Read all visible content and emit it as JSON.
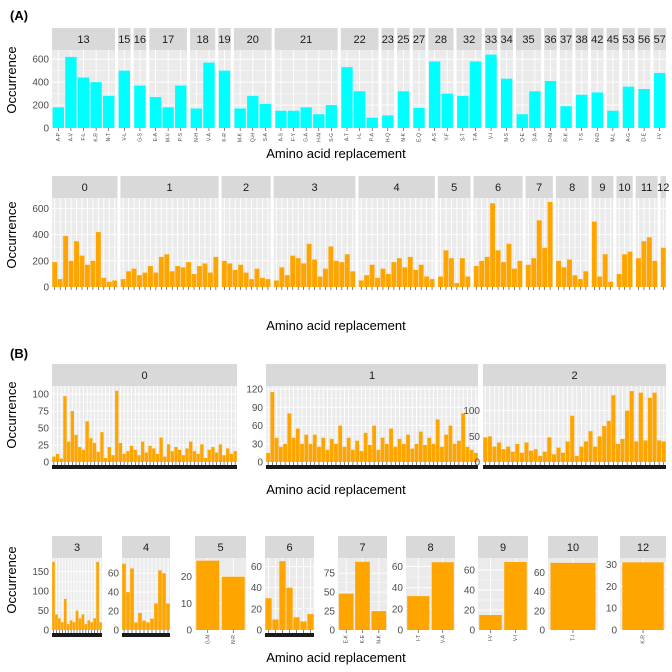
{
  "panels": {
    "A_label": "(A)",
    "B_label": "(B)"
  },
  "axis_titles": {
    "ylabel": "Occurrence",
    "xlabel": "Amino acid replacement"
  },
  "colors": {
    "cyan": "#00ffff",
    "orange": "#ffa500"
  },
  "chart_data": [
    {
      "type": "bar",
      "panel": "A",
      "row": 1,
      "color": "#00ffff",
      "ylabel": "Occurrence",
      "xlabel": "Amino acid replacement",
      "ylim": [
        0,
        680
      ],
      "yticks": [
        0,
        200,
        400,
        600
      ],
      "facets": [
        {
          "name": "13",
          "categories": [
            "A-P",
            "A-V",
            "F-L",
            "K-R",
            "N-T"
          ],
          "values": [
            180,
            620,
            440,
            400,
            280
          ]
        },
        {
          "name": "15",
          "categories": [
            "V-L"
          ],
          "values": [
            500
          ]
        },
        {
          "name": "16",
          "categories": [
            "G-S"
          ],
          "values": [
            370
          ]
        },
        {
          "name": "17",
          "categories": [
            "E-A",
            "M-V",
            "P-S"
          ],
          "values": [
            270,
            180,
            370
          ]
        },
        {
          "name": "18",
          "categories": [
            "N-H",
            "V-A"
          ],
          "values": [
            170,
            570
          ]
        },
        {
          "name": "19",
          "categories": [
            "K-R"
          ],
          "values": [
            500
          ]
        },
        {
          "name": "20",
          "categories": [
            "M-K",
            "Q-H",
            "S-A"
          ],
          "values": [
            170,
            280,
            210
          ]
        },
        {
          "name": "21",
          "categories": [
            "A-S",
            "F-Y",
            "G-A",
            "H-N",
            "S-G"
          ],
          "values": [
            150,
            150,
            180,
            120,
            200
          ]
        },
        {
          "name": "22",
          "categories": [
            "A-T",
            "I-L",
            "P-A"
          ],
          "values": [
            530,
            320,
            90
          ]
        },
        {
          "name": "23",
          "categories": [
            "H-Q"
          ],
          "values": [
            110
          ]
        },
        {
          "name": "25",
          "categories": [
            "N-K"
          ],
          "values": [
            320
          ]
        },
        {
          "name": "27",
          "categories": [
            "E-Q"
          ],
          "values": [
            175
          ]
        },
        {
          "name": "28",
          "categories": [
            "A-S",
            "Y-F"
          ],
          "values": [
            580,
            300
          ]
        },
        {
          "name": "32",
          "categories": [
            "S-T",
            "T-A"
          ],
          "values": [
            280,
            580
          ]
        },
        {
          "name": "33",
          "categories": [
            "V-I"
          ],
          "values": [
            640
          ]
        },
        {
          "name": "34",
          "categories": [
            "N-S"
          ],
          "values": [
            430
          ]
        },
        {
          "name": "35",
          "categories": [
            "Q-E",
            "S-A"
          ],
          "values": [
            120,
            320
          ]
        },
        {
          "name": "36",
          "categories": [
            "D-N"
          ],
          "values": [
            410
          ]
        },
        {
          "name": "37",
          "categories": [
            "R-K"
          ],
          "values": [
            190
          ]
        },
        {
          "name": "38",
          "categories": [
            "T-S"
          ],
          "values": [
            290
          ]
        },
        {
          "name": "42",
          "categories": [
            "N-D"
          ],
          "values": [
            310
          ]
        },
        {
          "name": "45",
          "categories": [
            "M-L"
          ],
          "values": [
            150
          ]
        },
        {
          "name": "53",
          "categories": [
            "A-G"
          ],
          "values": [
            360
          ]
        },
        {
          "name": "56",
          "categories": [
            "D-E"
          ],
          "values": [
            340
          ]
        },
        {
          "name": "57",
          "categories": [
            "I-V"
          ],
          "values": [
            480
          ]
        }
      ]
    },
    {
      "type": "bar",
      "panel": "A",
      "row": 2,
      "color": "#ffa500",
      "ylabel": "Occurrence",
      "xlabel": "Amino acid replacement",
      "ylim": [
        0,
        680
      ],
      "yticks": [
        0,
        200,
        400,
        600
      ],
      "facets": [
        {
          "name": "0",
          "values": [
            190,
            60,
            390,
            200,
            350,
            240,
            170,
            200,
            420,
            70,
            40,
            50
          ]
        },
        {
          "name": "1",
          "values": [
            60,
            120,
            140,
            90,
            110,
            160,
            110,
            230,
            250,
            120,
            160,
            150,
            190,
            100,
            160,
            180,
            110,
            230
          ]
        },
        {
          "name": "2",
          "values": [
            200,
            180,
            130,
            170,
            110,
            60,
            140,
            70,
            60
          ]
        },
        {
          "name": "3",
          "values": [
            50,
            150,
            90,
            240,
            220,
            180,
            330,
            210,
            80,
            140,
            310,
            200,
            190,
            250,
            120
          ]
        },
        {
          "name": "4",
          "values": [
            50,
            90,
            170,
            70,
            140,
            100,
            190,
            220,
            150,
            230,
            130,
            170,
            80,
            60
          ]
        },
        {
          "name": "5",
          "values": [
            80,
            280,
            220,
            30,
            220,
            80
          ]
        },
        {
          "name": "6",
          "values": [
            160,
            200,
            230,
            640,
            280,
            190,
            330,
            140,
            200
          ]
        },
        {
          "name": "7",
          "values": [
            170,
            220,
            510,
            300,
            650
          ]
        },
        {
          "name": "8",
          "values": [
            200,
            150,
            210,
            90,
            60,
            120
          ]
        },
        {
          "name": "9",
          "values": [
            500,
            80,
            250,
            40
          ]
        },
        {
          "name": "10",
          "values": [
            100,
            250,
            270
          ]
        },
        {
          "name": "11",
          "values": [
            220,
            350,
            380,
            200
          ]
        },
        {
          "name": "12",
          "values": [
            300
          ]
        }
      ]
    },
    {
      "type": "bar",
      "panel": "B",
      "row": 1,
      "color": "#ffa500",
      "ylabel": "Occurrence",
      "xlabel": "Amino acid replacement",
      "facets": [
        {
          "name": "0",
          "ylim": [
            0,
            112
          ],
          "yticks": [
            0,
            25,
            50,
            75,
            100
          ],
          "values": [
            8,
            12,
            5,
            97,
            30,
            75,
            40,
            22,
            18,
            60,
            35,
            28,
            15,
            44,
            6,
            22,
            10,
            105,
            28,
            12,
            16,
            24,
            18,
            10,
            30,
            14,
            24,
            20,
            12,
            36,
            8,
            26,
            16,
            22,
            18,
            10,
            20,
            30,
            16,
            12,
            26,
            6,
            18,
            22,
            14,
            26,
            10,
            20,
            12,
            16
          ]
        },
        {
          "name": "1",
          "ylim": [
            0,
            125
          ],
          "yticks": [
            0,
            30,
            60,
            90,
            120
          ],
          "values": [
            15,
            115,
            40,
            25,
            30,
            80,
            40,
            55,
            30,
            45,
            30,
            45,
            25,
            40,
            20,
            38,
            30,
            60,
            25,
            40,
            20,
            35,
            18,
            48,
            28,
            60,
            20,
            40,
            30,
            55,
            25,
            38,
            30,
            45,
            22,
            30,
            50,
            28,
            40,
            30,
            70,
            25,
            45,
            60,
            30,
            35,
            80,
            25,
            20,
            15
          ]
        },
        {
          "name": "2",
          "ylim": [
            0,
            148
          ],
          "yticks": [
            0,
            50,
            100
          ],
          "values": [
            48,
            50,
            30,
            38,
            25,
            30,
            20,
            35,
            18,
            38,
            22,
            25,
            12,
            20,
            48,
            15,
            28,
            18,
            40,
            90,
            12,
            30,
            40,
            60,
            30,
            50,
            70,
            80,
            130,
            35,
            45,
            100,
            138,
            40,
            135,
            42,
            125,
            135,
            42,
            40
          ]
        }
      ]
    },
    {
      "type": "bar",
      "panel": "B",
      "row": 2,
      "color": "#ffa500",
      "ylabel": "Occurrence",
      "xlabel": "Amino acid replacement",
      "facets": [
        {
          "name": "3",
          "ylim": [
            0,
            185
          ],
          "yticks": [
            0,
            50,
            100,
            150
          ],
          "values": [
            175,
            40,
            30,
            20,
            80,
            15,
            25,
            20,
            50,
            30,
            40,
            15,
            25,
            20,
            30,
            175,
            20
          ]
        },
        {
          "name": "4",
          "ylim": [
            0,
            76
          ],
          "yticks": [
            0,
            20,
            40,
            60
          ],
          "values": [
            70,
            40,
            65,
            8,
            18,
            10,
            8,
            12,
            28,
            63,
            60,
            28
          ]
        },
        {
          "name": "5",
          "ylim": [
            0,
            27
          ],
          "yticks": [
            0,
            10,
            20
          ],
          "categories": [
            "G-N",
            "N-R"
          ],
          "values": [
            26,
            20
          ]
        },
        {
          "name": "6",
          "ylim": [
            0,
            68
          ],
          "yticks": [
            0,
            20,
            40,
            60
          ],
          "values": [
            30,
            10,
            65,
            40,
            12,
            8,
            15
          ]
        },
        {
          "name": "7",
          "ylim": [
            0,
            95
          ],
          "yticks": [
            0,
            25,
            50,
            75
          ],
          "categories": [
            "E-K",
            "K-E",
            "N-K"
          ],
          "values": [
            48,
            90,
            25
          ]
        },
        {
          "name": "8",
          "ylim": [
            0,
            68
          ],
          "yticks": [
            0,
            20,
            40,
            60
          ],
          "categories": [
            "I-T",
            "V-A"
          ],
          "values": [
            32,
            64
          ]
        },
        {
          "name": "9",
          "ylim": [
            0,
            72
          ],
          "yticks": [
            0,
            20,
            40,
            60
          ],
          "categories": [
            "I-V",
            "V-I"
          ],
          "values": [
            15,
            68
          ]
        },
        {
          "name": "10",
          "ylim": [
            0,
            75
          ],
          "yticks": [
            0,
            20,
            40,
            60
          ],
          "categories": [
            "T-I"
          ],
          "values": [
            70
          ]
        },
        {
          "name": "12",
          "ylim": [
            0,
            33
          ],
          "yticks": [
            0,
            10,
            20,
            30
          ],
          "categories": [
            "K-R"
          ],
          "values": [
            31
          ]
        }
      ]
    }
  ]
}
